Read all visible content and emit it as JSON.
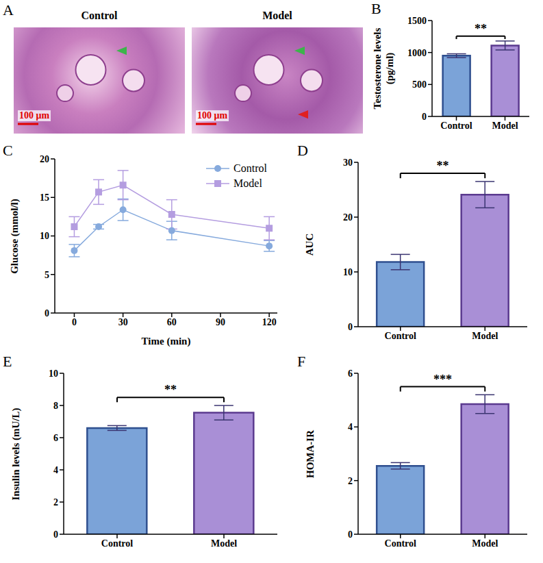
{
  "chart_data": [
    {
      "panel": "A",
      "type": "image",
      "titles": [
        "Control",
        "Model"
      ],
      "scale_bar": "100 μm"
    },
    {
      "panel": "B",
      "type": "bar",
      "categories": [
        "Control",
        "Model"
      ],
      "values": [
        950,
        1110
      ],
      "errors": [
        30,
        70
      ],
      "colors": [
        "#7ba3d8",
        "#a98fd6"
      ],
      "ylabel": "Testosterone levels (pg/ml)",
      "ylim": [
        0,
        1500
      ],
      "yticks": [
        0,
        500,
        1000,
        1500
      ],
      "significance": "**"
    },
    {
      "panel": "C",
      "type": "line",
      "x": [
        0,
        15,
        30,
        60,
        120
      ],
      "series": [
        {
          "name": "Control",
          "color": "#86aadd",
          "marker": "circle",
          "values": [
            8.1,
            11.2,
            13.4,
            10.7,
            8.7
          ],
          "errors": [
            0.8,
            0.3,
            1.4,
            1.2,
            0.7
          ]
        },
        {
          "name": "Model",
          "color": "#b49de0",
          "marker": "square",
          "values": [
            11.2,
            15.7,
            16.6,
            12.8,
            11.0
          ],
          "errors": [
            1.3,
            1.6,
            1.9,
            1.9,
            1.5
          ]
        }
      ],
      "xlabel": "Time (min)",
      "ylabel": "Glucose (mmol/l)",
      "xlim": [
        -12,
        125
      ],
      "xticks": [
        0,
        30,
        60,
        90,
        120
      ],
      "ylim": [
        0,
        20
      ],
      "yticks": [
        0,
        5,
        10,
        15,
        20
      ],
      "legend": "upper right"
    },
    {
      "panel": "D",
      "type": "bar",
      "categories": [
        "Control",
        "Model"
      ],
      "values": [
        11.8,
        24.1
      ],
      "errors": [
        1.4,
        2.4
      ],
      "colors": [
        "#7ba3d8",
        "#a98fd6"
      ],
      "ylabel": "AUC",
      "ylim": [
        0,
        30
      ],
      "yticks": [
        0,
        10,
        20,
        30
      ],
      "significance": "**"
    },
    {
      "panel": "E",
      "type": "bar",
      "categories": [
        "Control",
        "Model"
      ],
      "values": [
        6.6,
        7.55
      ],
      "errors": [
        0.15,
        0.45
      ],
      "colors": [
        "#7ba3d8",
        "#a98fd6"
      ],
      "ylabel": "Insulin levels (mU/L)",
      "ylim": [
        0,
        10
      ],
      "yticks": [
        0,
        2,
        4,
        6,
        8,
        10
      ],
      "significance": "**"
    },
    {
      "panel": "F",
      "type": "bar",
      "categories": [
        "Control",
        "Model"
      ],
      "values": [
        2.55,
        4.85
      ],
      "errors": [
        0.12,
        0.35
      ],
      "colors": [
        "#7ba3d8",
        "#a98fd6"
      ],
      "ylabel": "HOMA-IR",
      "ylim": [
        0,
        6
      ],
      "yticks": [
        0,
        2,
        4,
        6
      ],
      "significance": "***"
    }
  ]
}
